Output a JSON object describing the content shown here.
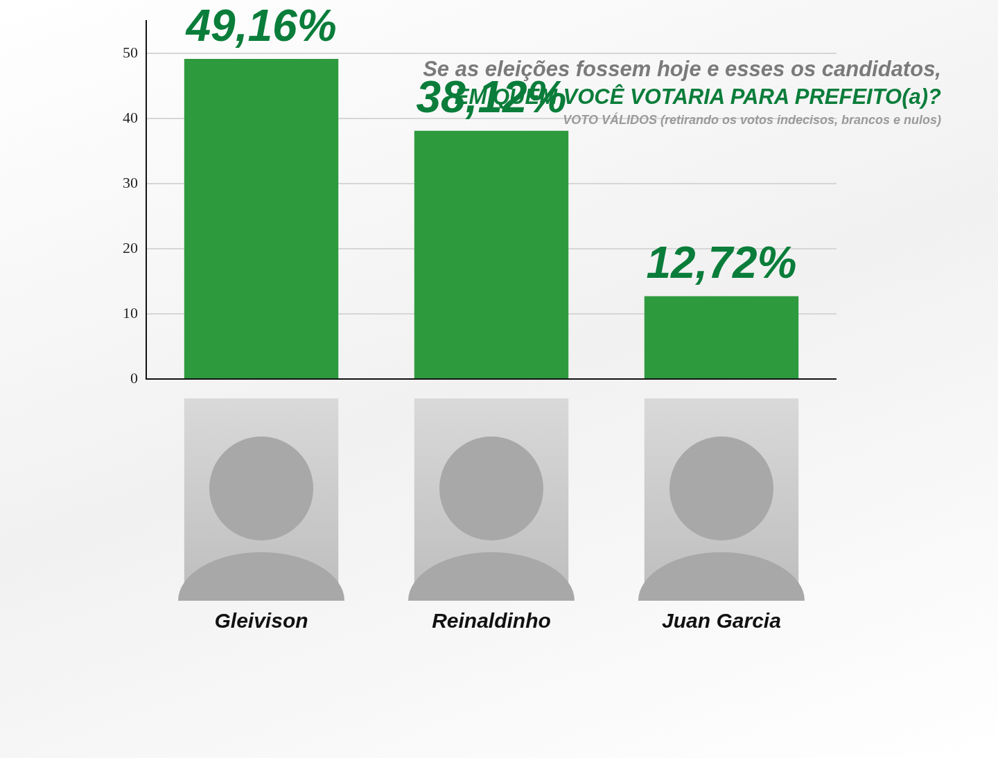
{
  "chart_data": {
    "type": "bar",
    "title": "Se as eleições fossem hoje e esses os candidatos,",
    "subtitle": "EM QUEM VOCÊ VOTARIA PARA PREFEITO(a)?",
    "annotations": [
      "VOTO VÁLIDOS  (retirando os votos indecisos, brancos e nulos)"
    ],
    "categories": [
      "Gleivison",
      "Reinaldinho",
      "Juan Garcia"
    ],
    "values": [
      49.16,
      38.12,
      12.72
    ],
    "value_labels": [
      "49,16%",
      "38,12%",
      "12,72%"
    ],
    "data_labels": true,
    "color": "#2e9a3e",
    "ylim": [
      0,
      55
    ],
    "yticks": [
      0,
      10,
      20,
      30,
      40,
      50
    ],
    "grid": true
  }
}
